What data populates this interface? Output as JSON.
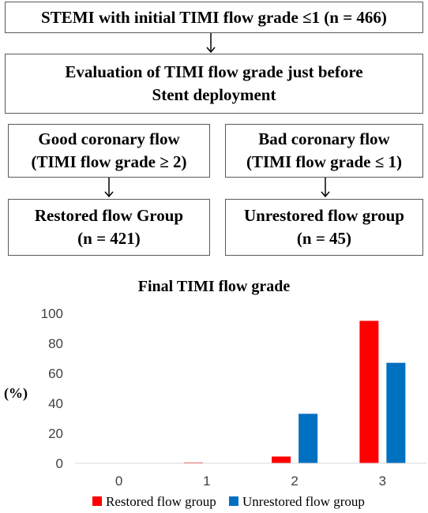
{
  "flowchart": {
    "top_box": "STEMI with initial TIMI flow grade ≤1 (n = 466)",
    "eval_box": [
      "Evaluation of TIMI flow grade just before",
      "Stent deployment"
    ],
    "good_flow": [
      "Good coronary flow",
      "(TIMI flow  grade ≥ 2)"
    ],
    "bad_flow": [
      "Bad coronary flow",
      "(TIMI flow grade ≤ 1)"
    ],
    "restored_group": [
      "Restored flow Group",
      "(n = 421)"
    ],
    "unrestored_group": [
      "Unrestored flow group",
      "(n = 45)"
    ]
  },
  "colors": {
    "restored": "#ff0000",
    "unrestored": "#0070c0",
    "border": "#595959"
  },
  "chart_data": {
    "type": "bar",
    "title": "Final TIMI flow grade",
    "xlabel": "",
    "ylabel": "(%)",
    "categories": [
      "0",
      "1",
      "2",
      "3"
    ],
    "yticks": [
      "0",
      "20",
      "40",
      "60",
      "80",
      "100"
    ],
    "ylim": [
      0,
      100
    ],
    "grid": false,
    "legend_position": "bottom",
    "series": [
      {
        "name": "Restored flow group",
        "values": [
          0,
          0.5,
          4.5,
          95
        ]
      },
      {
        "name": "Unrestored flow group",
        "values": [
          0,
          0,
          33,
          67
        ]
      }
    ]
  }
}
